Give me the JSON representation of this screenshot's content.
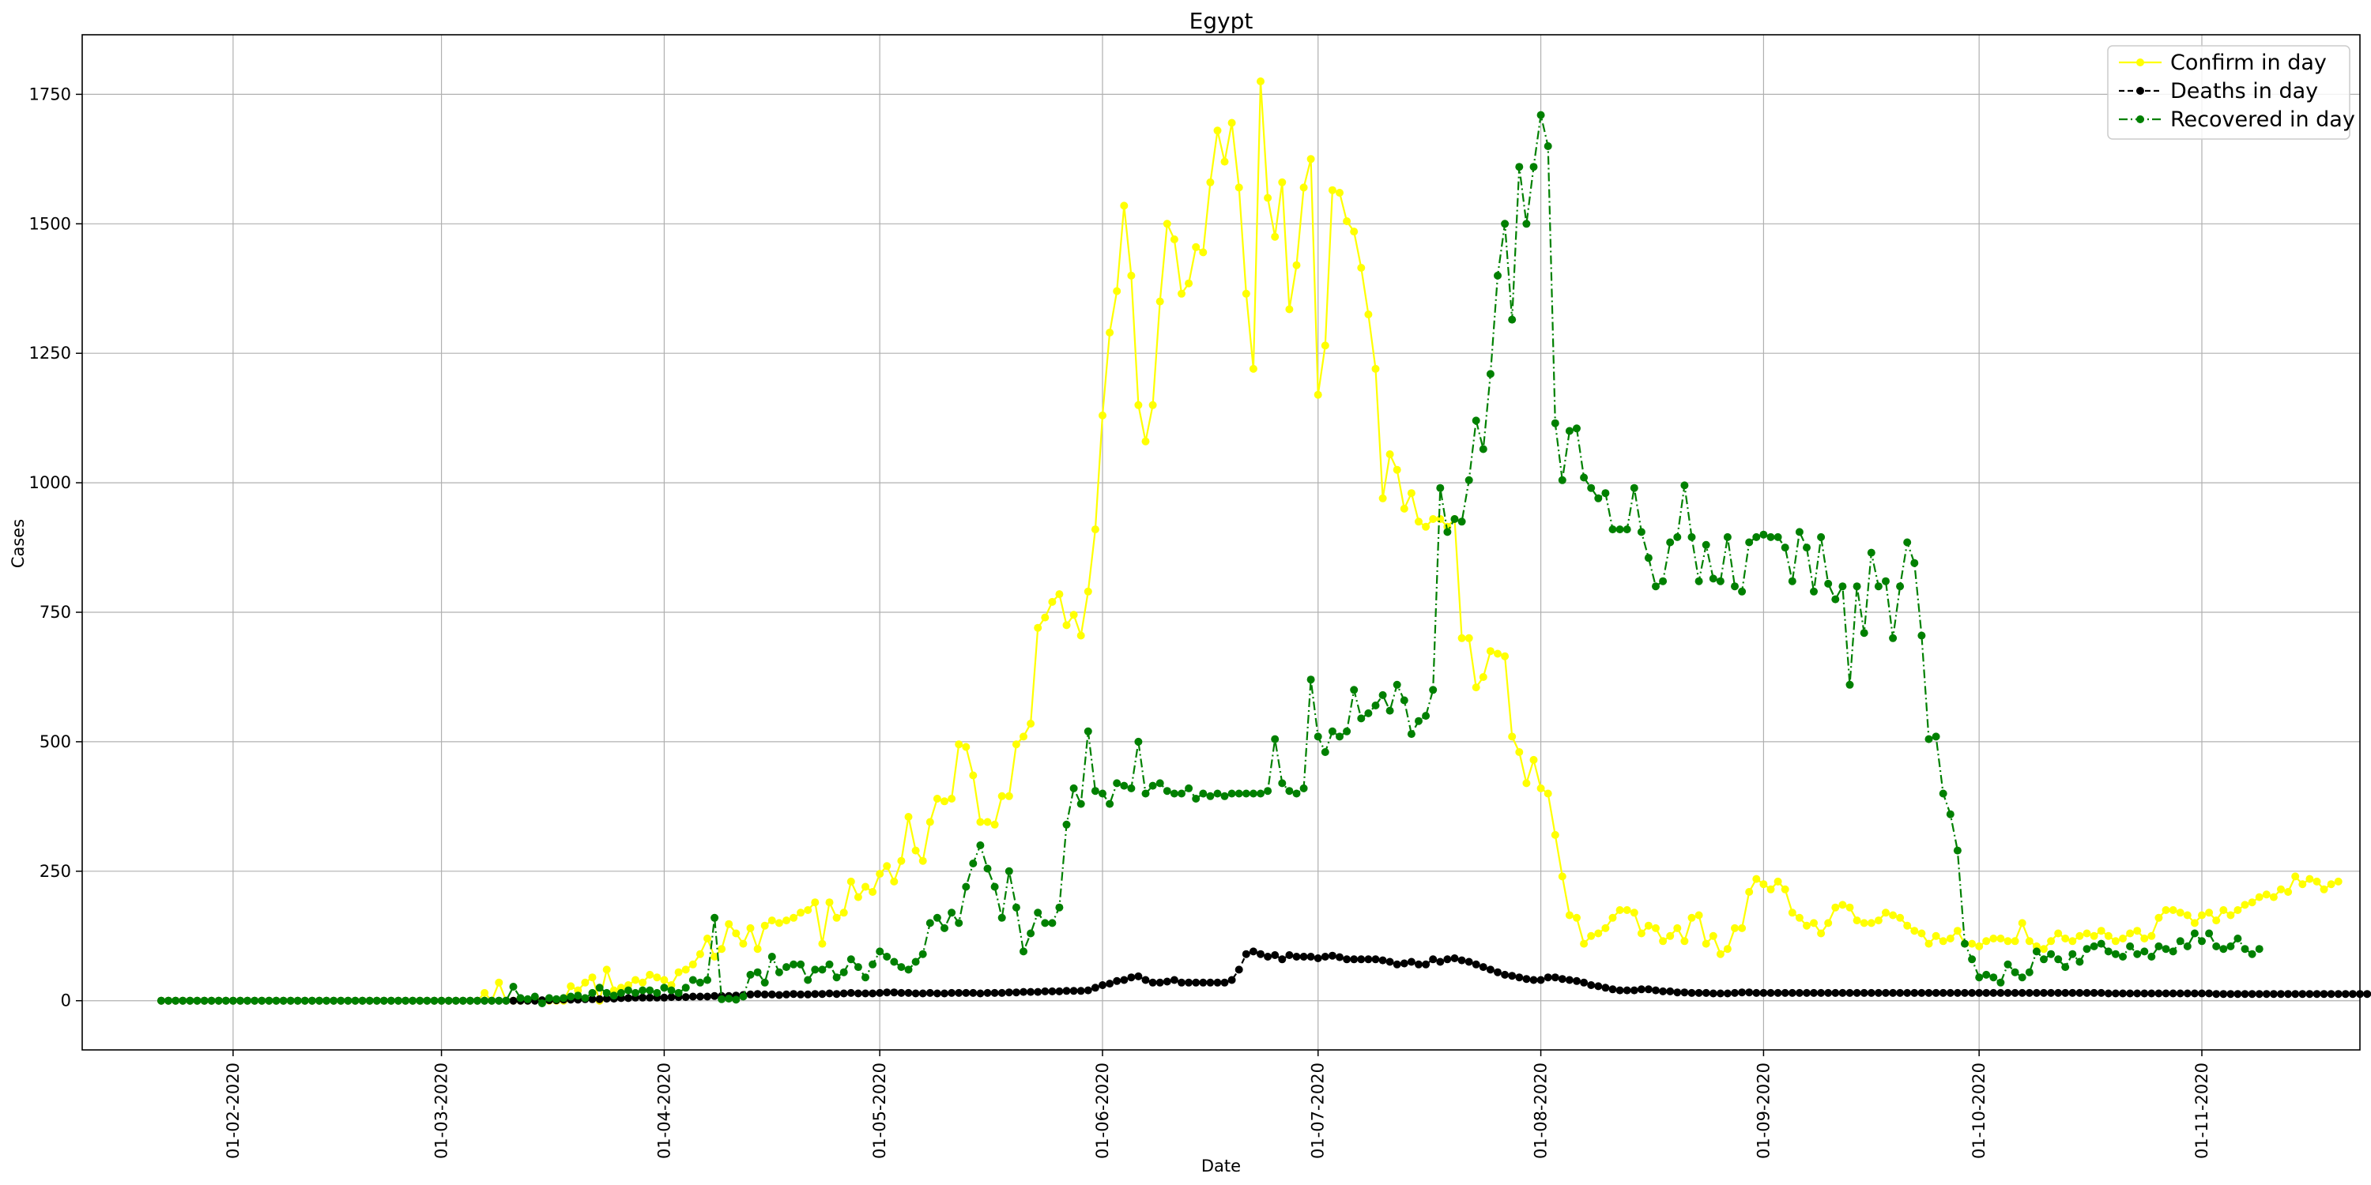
{
  "chart_data": {
    "type": "line",
    "title": "Egypt",
    "xlabel": "Date",
    "ylabel": "Cases",
    "x_start": "2020-01-22",
    "xlim": [
      "2020-01-11",
      "2020-11-23"
    ],
    "ylim": [
      -95,
      1865
    ],
    "x_ticks": [
      {
        "label": "01-02-2020",
        "date": "2020-02-01"
      },
      {
        "label": "01-03-2020",
        "date": "2020-03-01"
      },
      {
        "label": "01-04-2020",
        "date": "2020-04-01"
      },
      {
        "label": "01-05-2020",
        "date": "2020-05-01"
      },
      {
        "label": "01-06-2020",
        "date": "2020-06-01"
      },
      {
        "label": "01-07-2020",
        "date": "2020-07-01"
      },
      {
        "label": "01-08-2020",
        "date": "2020-08-01"
      },
      {
        "label": "01-09-2020",
        "date": "2020-09-01"
      },
      {
        "label": "01-10-2020",
        "date": "2020-10-01"
      },
      {
        "label": "01-11-2020",
        "date": "2020-11-01"
      }
    ],
    "y_ticks": [
      0,
      250,
      500,
      750,
      1000,
      1250,
      1500,
      1750
    ],
    "grid": true,
    "legend_position": "top-right",
    "series": [
      {
        "name": "Confirm in day",
        "color": "#ffff00",
        "linestyle": "solid",
        "values": [
          0,
          0,
          0,
          0,
          0,
          0,
          0,
          0,
          0,
          0,
          0,
          0,
          0,
          0,
          0,
          0,
          0,
          0,
          0,
          0,
          0,
          0,
          0,
          0,
          0,
          0,
          0,
          0,
          0,
          0,
          0,
          0,
          0,
          0,
          0,
          0,
          0,
          0,
          0,
          0,
          0,
          0,
          0,
          0,
          0,
          15,
          0,
          35,
          0,
          0,
          0,
          0,
          5,
          0,
          0,
          0,
          0,
          28,
          20,
          35,
          45,
          0,
          60,
          20,
          25,
          30,
          40,
          35,
          50,
          45,
          40,
          30,
          55,
          60,
          70,
          90,
          120,
          85,
          100,
          148,
          130,
          110,
          140,
          100,
          145,
          155,
          150,
          155,
          160,
          170,
          175,
          190,
          110,
          190,
          160,
          170,
          230,
          200,
          220,
          210,
          245,
          260,
          230,
          270,
          355,
          290,
          270,
          345,
          390,
          385,
          390,
          495,
          490,
          435,
          345,
          345,
          340,
          395,
          395,
          495,
          510,
          535,
          720,
          740,
          770,
          785,
          725,
          745,
          705,
          790,
          910,
          1130,
          1290,
          1370,
          1535,
          1400,
          1150,
          1080,
          1150,
          1350,
          1500,
          1470,
          1365,
          1385,
          1455,
          1445,
          1580,
          1680,
          1620,
          1695,
          1570,
          1365,
          1220,
          1775,
          1550,
          1475,
          1580,
          1335,
          1420,
          1570,
          1625,
          1170,
          1265,
          1565,
          1560,
          1505,
          1485,
          1415,
          1325,
          1220,
          970,
          1055,
          1025,
          950,
          980,
          925,
          915,
          930,
          930,
          915,
          930,
          700,
          700,
          605,
          625,
          675,
          670,
          665,
          510,
          480,
          420,
          465,
          410,
          400,
          320,
          240,
          165,
          160,
          110,
          125,
          130,
          140,
          160,
          175,
          175,
          170,
          130,
          145,
          140,
          115,
          125,
          140,
          115,
          160,
          165,
          110,
          125,
          90,
          100,
          140,
          140,
          210,
          235,
          225,
          215,
          230,
          215,
          170,
          160,
          145,
          150,
          130,
          150,
          180,
          185,
          180,
          155,
          150,
          150,
          155,
          170,
          165,
          160,
          145,
          135,
          130,
          110,
          125,
          115,
          120,
          135,
          110,
          110,
          105,
          115,
          120,
          120,
          115,
          115,
          150,
          115,
          105,
          100,
          115,
          130,
          120,
          115,
          125,
          130,
          125,
          135,
          125,
          115,
          120,
          130,
          135,
          120,
          125,
          160,
          175,
          175,
          170,
          165,
          150,
          165,
          170,
          155,
          175,
          165,
          175,
          185,
          190,
          200,
          205,
          200,
          215,
          210,
          240,
          225,
          235,
          230,
          215,
          225,
          230
        ]
      },
      {
        "name": "Deaths in day",
        "color": "#000000",
        "linestyle": "dashed",
        "values": [
          0,
          0,
          0,
          0,
          0,
          0,
          0,
          0,
          0,
          0,
          0,
          0,
          0,
          0,
          0,
          0,
          0,
          0,
          0,
          0,
          0,
          0,
          0,
          0,
          0,
          0,
          0,
          0,
          0,
          0,
          0,
          0,
          0,
          0,
          0,
          0,
          0,
          0,
          0,
          0,
          0,
          0,
          0,
          0,
          0,
          0,
          0,
          0,
          0,
          0,
          0,
          0,
          0,
          1,
          1,
          1,
          2,
          2,
          2,
          3,
          3,
          3,
          4,
          4,
          5,
          5,
          6,
          6,
          6,
          6,
          6,
          7,
          7,
          7,
          8,
          8,
          8,
          9,
          9,
          9,
          10,
          11,
          12,
          13,
          12,
          12,
          11,
          12,
          13,
          12,
          12,
          13,
          13,
          14,
          13,
          14,
          15,
          14,
          14,
          14,
          15,
          16,
          16,
          15,
          15,
          14,
          14,
          15,
          14,
          14,
          15,
          15,
          15,
          15,
          14,
          15,
          15,
          15,
          16,
          16,
          17,
          17,
          17,
          18,
          18,
          18,
          19,
          19,
          19,
          20,
          25,
          30,
          33,
          38,
          40,
          45,
          47,
          40,
          35,
          35,
          37,
          40,
          35,
          35,
          35,
          35,
          35,
          35,
          35,
          40,
          60,
          90,
          95,
          90,
          85,
          88,
          80,
          88,
          85,
          85,
          85,
          82,
          85,
          87,
          84,
          80,
          80,
          80,
          80,
          80,
          78,
          75,
          70,
          72,
          75,
          70,
          70,
          80,
          75,
          80,
          82,
          78,
          75,
          70,
          65,
          60,
          55,
          50,
          48,
          45,
          42,
          40,
          40,
          45,
          45,
          42,
          40,
          38,
          35,
          30,
          28,
          25,
          22,
          20,
          20,
          20,
          22,
          22,
          20,
          18,
          18,
          16,
          16,
          15,
          15,
          15,
          14,
          14,
          14,
          15,
          16,
          16,
          15,
          15,
          15,
          15,
          15,
          15,
          15,
          15,
          15,
          15,
          15,
          15,
          15,
          15,
          15,
          15,
          15,
          15,
          15,
          15,
          15,
          15,
          15,
          15,
          15,
          15,
          15,
          15,
          15,
          15,
          15,
          15,
          15,
          15,
          15,
          15,
          15,
          15,
          15,
          15,
          15,
          15,
          15,
          15,
          15,
          15,
          15,
          15,
          15,
          14,
          14,
          14,
          14,
          14,
          14,
          14,
          14,
          14,
          14,
          14,
          14,
          14,
          14,
          14,
          13,
          13,
          13,
          13,
          13,
          13,
          13,
          13,
          13,
          13,
          13,
          13,
          13,
          13,
          13,
          13,
          13,
          13,
          13,
          13,
          13,
          13,
          13,
          13,
          13,
          13,
          13,
          13,
          13,
          13,
          13,
          13,
          13,
          13,
          13,
          13,
          13,
          13,
          13,
          13,
          13
        ]
      },
      {
        "name": "Recovered in day",
        "color": "#008000",
        "linestyle": "dashdot",
        "values": [
          0,
          0,
          0,
          0,
          0,
          0,
          0,
          0,
          0,
          0,
          0,
          0,
          0,
          0,
          0,
          0,
          0,
          0,
          0,
          0,
          0,
          0,
          0,
          0,
          0,
          0,
          0,
          0,
          0,
          0,
          0,
          0,
          0,
          0,
          0,
          0,
          0,
          0,
          0,
          0,
          0,
          0,
          0,
          0,
          0,
          0,
          0,
          0,
          0,
          27,
          5,
          3,
          8,
          -5,
          5,
          3,
          5,
          8,
          10,
          5,
          15,
          25,
          15,
          10,
          15,
          20,
          15,
          20,
          20,
          15,
          25,
          20,
          15,
          25,
          40,
          35,
          40,
          160,
          3,
          4,
          2,
          8,
          50,
          55,
          35,
          85,
          55,
          65,
          70,
          70,
          40,
          60,
          60,
          70,
          45,
          55,
          80,
          65,
          45,
          70,
          95,
          85,
          75,
          65,
          60,
          75,
          90,
          150,
          160,
          140,
          170,
          150,
          220,
          265,
          300,
          255,
          220,
          160,
          250,
          180,
          95,
          130,
          170,
          150,
          150,
          180,
          340,
          410,
          380,
          520,
          405,
          400,
          380,
          420,
          415,
          410,
          500,
          400,
          415,
          420,
          405,
          400,
          400,
          410,
          390,
          400,
          395,
          400,
          395,
          400,
          400,
          400,
          400,
          400,
          405,
          505,
          420,
          405,
          400,
          410,
          620,
          510,
          480,
          520,
          510,
          520,
          600,
          545,
          555,
          570,
          590,
          560,
          610,
          580,
          515,
          540,
          550,
          600,
          990,
          905,
          930,
          925,
          1005,
          1120,
          1065,
          1210,
          1400,
          1500,
          1315,
          1610,
          1500,
          1610,
          1710,
          1650,
          1115,
          1005,
          1100,
          1105,
          1010,
          990,
          970,
          980,
          910,
          910,
          910,
          990,
          905,
          855,
          800,
          810,
          885,
          895,
          995,
          895,
          810,
          880,
          815,
          810,
          895,
          800,
          790,
          885,
          895,
          900,
          895,
          895,
          875,
          810,
          905,
          875,
          790,
          895,
          805,
          775,
          800,
          610,
          800,
          710,
          865,
          800,
          810,
          700,
          800,
          885,
          845,
          705,
          505,
          510,
          400,
          360,
          290,
          110,
          80,
          45,
          50,
          45,
          35,
          70,
          55,
          45,
          55,
          95,
          80,
          90,
          80,
          65,
          90,
          75,
          100,
          105,
          110,
          95,
          90,
          85,
          105,
          90,
          95,
          85,
          105,
          100,
          95,
          115,
          105,
          130,
          115,
          130,
          105,
          100,
          105,
          120,
          100,
          90,
          100
        ]
      }
    ]
  }
}
